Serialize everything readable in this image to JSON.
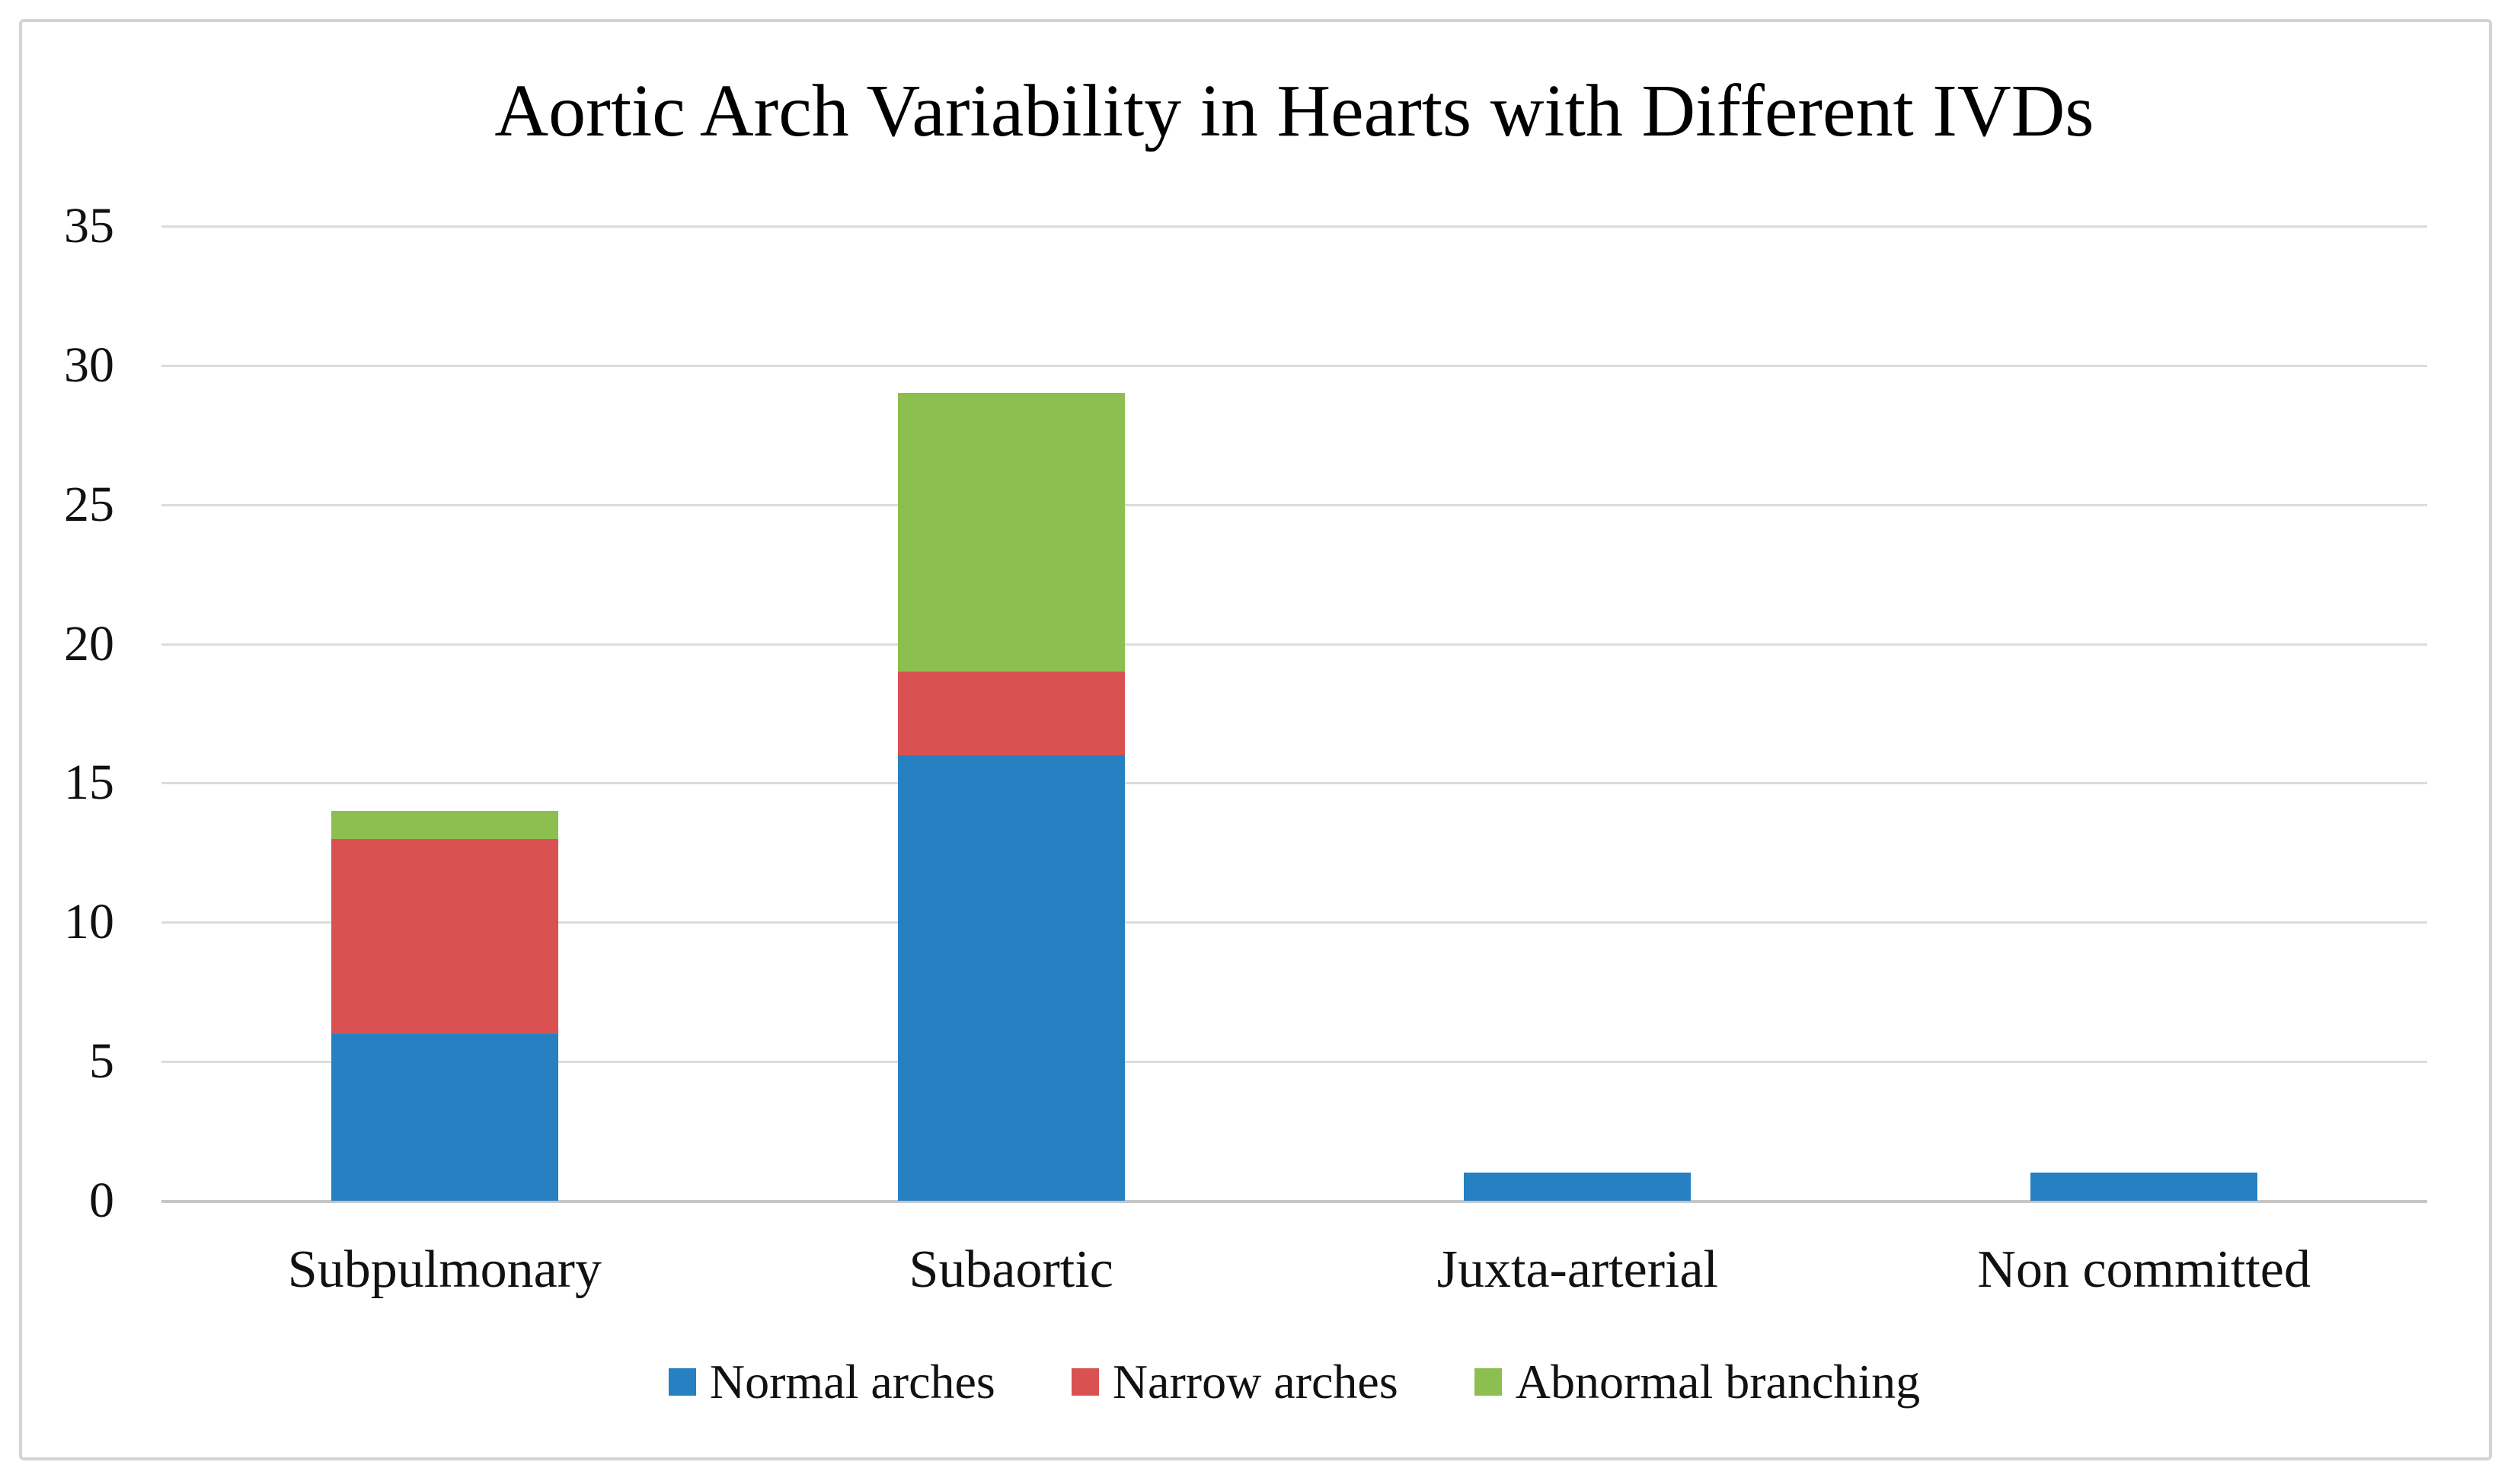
{
  "title": "Aortic Arch Variability in Hearts with Different IVDs",
  "chart_data": {
    "type": "bar",
    "stacked": true,
    "title": "Aortic Arch Variability in Hearts with Different IVDs",
    "categories": [
      "Subpulmonary",
      "Subaortic",
      "Juxta-arterial",
      "Non committed"
    ],
    "series": [
      {
        "name": "Normal arches",
        "color": "#2680C2",
        "values": [
          6,
          16,
          1,
          1
        ]
      },
      {
        "name": "Narrow arches",
        "color": "#D95151",
        "values": [
          7,
          3,
          0,
          0
        ]
      },
      {
        "name": "Abnormal branching",
        "color": "#8CBE50",
        "values": [
          1,
          10,
          0,
          0
        ]
      }
    ],
    "stack_totals": [
      14,
      29,
      1,
      1
    ],
    "ylim": [
      0,
      35
    ],
    "ytick_step": 5,
    "yticks": [
      0,
      5,
      10,
      15,
      20,
      25,
      30,
      35
    ],
    "xlabel": "",
    "ylabel": "",
    "grid": true,
    "legend_position": "bottom"
  },
  "colors": {
    "normal_arches": "#2680C2",
    "narrow_arches": "#D95151",
    "abnormal_branching": "#8CBE50",
    "gridline": "#DCDCDC",
    "axis_line": "#C6C6C6",
    "frame_border": "#D4D4D4",
    "background": "#FFFFFF",
    "text": "#000000"
  }
}
